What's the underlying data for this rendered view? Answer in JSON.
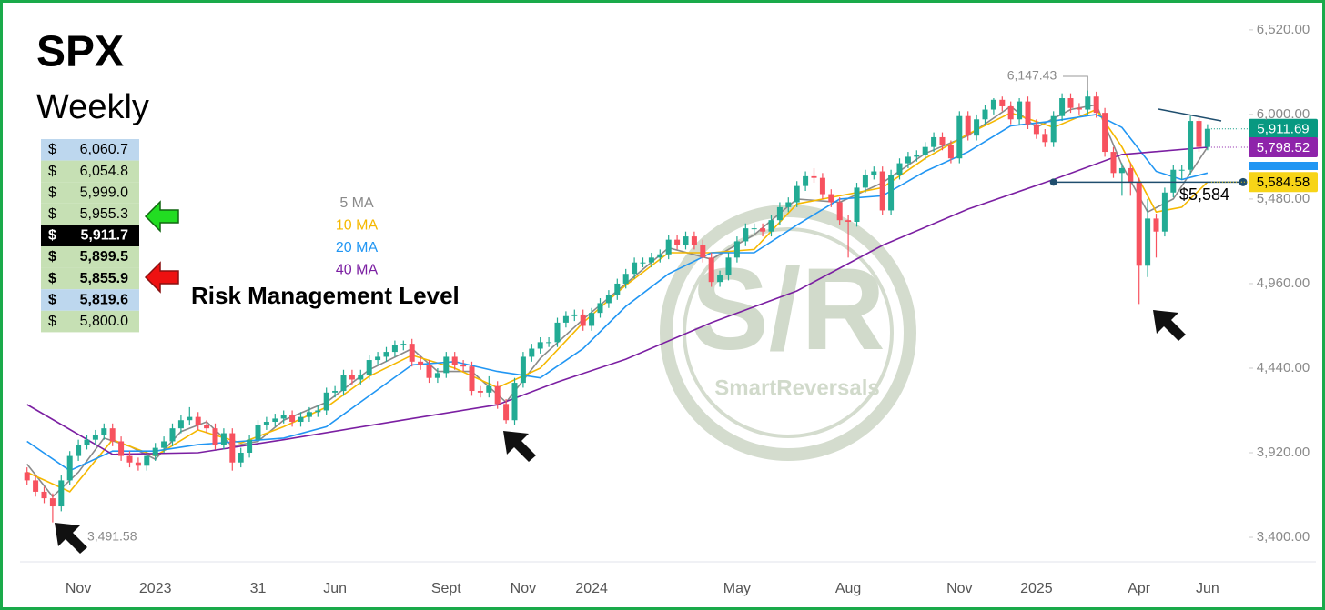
{
  "chart_data": {
    "type": "candlestick",
    "title": "SPX",
    "subtitle": "Weekly",
    "levels_table": [
      [
        "$",
        "6,060.7"
      ],
      [
        "$",
        "6,054.8"
      ],
      [
        "$",
        "5,999.0"
      ],
      [
        "$",
        "5,955.3"
      ],
      [
        "$",
        "5,911.7"
      ],
      [
        "$",
        "5,899.5"
      ],
      [
        "$",
        "5,855.9"
      ],
      [
        "$",
        "5,819.6"
      ],
      [
        "$",
        "5,800.0"
      ]
    ],
    "risk_label": "Risk Management Level",
    "watermark": {
      "logo": "S/R",
      "brand": "SmartReversals"
    },
    "categories": [
      null,
      null,
      null,
      null,
      null,
      null,
      "Nov",
      null,
      null,
      null,
      null,
      null,
      null,
      null,
      null,
      "2023",
      null,
      null,
      null,
      null,
      null,
      null,
      null,
      null,
      null,
      null,
      null,
      "31",
      null,
      null,
      null,
      null,
      null,
      null,
      null,
      null,
      "Jun",
      null,
      null,
      null,
      null,
      null,
      null,
      null,
      null,
      null,
      null,
      null,
      null,
      "Sept",
      null,
      null,
      null,
      null,
      null,
      null,
      null,
      null,
      "Nov",
      null,
      null,
      null,
      null,
      null,
      null,
      null,
      "2024",
      null,
      null,
      null,
      null,
      null,
      null,
      null,
      null,
      null,
      null,
      null,
      null,
      null,
      null,
      null,
      null,
      "May",
      null,
      null,
      null,
      null,
      null,
      null,
      null,
      null,
      null,
      null,
      null,
      null,
      "Aug",
      null,
      null,
      null,
      null,
      null,
      null,
      null,
      null,
      null,
      null,
      null,
      null,
      "Nov",
      null,
      null,
      null,
      null,
      null,
      null,
      null,
      null,
      "2025",
      null,
      null,
      null,
      null,
      null,
      null,
      null,
      null,
      null,
      null,
      null,
      "Apr",
      null,
      null,
      null,
      null,
      null,
      null,
      null,
      "Jun"
    ],
    "open": [
      3800,
      3750,
      3680,
      3640,
      3590,
      3750,
      3900,
      3970,
      4000,
      4030,
      4070,
      3990,
      3900,
      3860,
      3840,
      3900,
      3950,
      3990,
      4070,
      4120,
      4140,
      4090,
      4070,
      3970,
      4040,
      3860,
      3920,
      4000,
      4090,
      4110,
      4130,
      4150,
      4110,
      4140,
      4170,
      4180,
      4290,
      4300,
      4400,
      4370,
      4400,
      4490,
      4510,
      4540,
      4580,
      4590,
      4480,
      4460,
      4380,
      4410,
      4510,
      4460,
      4450,
      4300,
      4290,
      4330,
      4220,
      4120,
      4350,
      4510,
      4560,
      4600,
      4600,
      4720,
      4760,
      4770,
      4700,
      4780,
      4840,
      4890,
      4960,
      5020,
      5090,
      5090,
      5120,
      5140,
      5230,
      5200,
      5250,
      5200,
      5120,
      4970,
      5010,
      5120,
      5220,
      5300,
      5300,
      5280,
      5350,
      5430,
      5460,
      5560,
      5620,
      5610,
      5510,
      5460,
      5350,
      5340,
      5550,
      5630,
      5650,
      5410,
      5630,
      5700,
      5740,
      5750,
      5800,
      5860,
      5810,
      5730,
      5990,
      5870,
      5970,
      6030,
      6090,
      6050,
      5970,
      6080,
      5940,
      5880,
      5830,
      5990,
      6100,
      6040,
      6030,
      6110,
      6010,
      5770,
      5640,
      5670,
      5580,
      5070,
      5360,
      5280,
      5520,
      5660,
      5660,
      5960,
      5800
    ],
    "high": [
      3830,
      3780,
      3710,
      3670,
      3780,
      3930,
      4000,
      4030,
      4060,
      4100,
      4100,
      4020,
      3930,
      3890,
      3930,
      3980,
      4020,
      4100,
      4150,
      4200,
      4170,
      4120,
      4100,
      4070,
      4070,
      3950,
      4030,
      4120,
      4140,
      4160,
      4180,
      4180,
      4170,
      4200,
      4210,
      4320,
      4330,
      4430,
      4430,
      4430,
      4520,
      4540,
      4570,
      4610,
      4610,
      4620,
      4510,
      4490,
      4440,
      4540,
      4540,
      4490,
      4480,
      4330,
      4390,
      4360,
      4250,
      4380,
      4540,
      4590,
      4630,
      4630,
      4750,
      4790,
      4800,
      4800,
      4810,
      4870,
      4920,
      4990,
      5050,
      5120,
      5120,
      5150,
      5170,
      5260,
      5260,
      5280,
      5280,
      5230,
      5150,
      5040,
      5150,
      5250,
      5330,
      5330,
      5330,
      5380,
      5460,
      5490,
      5590,
      5650,
      5670,
      5640,
      5540,
      5490,
      5380,
      5580,
      5660,
      5680,
      5680,
      5660,
      5730,
      5770,
      5780,
      5830,
      5890,
      5890,
      5840,
      6020,
      6020,
      6000,
      6060,
      6100,
      6110,
      6080,
      6100,
      6110,
      5970,
      5910,
      6020,
      6130,
      6130,
      6070,
      6147.43,
      6140,
      6040,
      5800,
      5700,
      5700,
      5610,
      5480,
      5390,
      5550,
      5690,
      5690,
      5990,
      5990,
      5940
    ],
    "low": [
      3720,
      3650,
      3610,
      3491.58,
      3560,
      3720,
      3870,
      3940,
      3970,
      4000,
      3960,
      3870,
      3830,
      3810,
      3810,
      3870,
      3920,
      3960,
      4040,
      4090,
      4060,
      4040,
      3940,
      3940,
      3810,
      3830,
      3890,
      3970,
      4060,
      4080,
      4100,
      4080,
      4080,
      4110,
      4140,
      4150,
      4260,
      4270,
      4340,
      4340,
      4370,
      4460,
      4480,
      4510,
      4550,
      4450,
      4430,
      4350,
      4350,
      4380,
      4430,
      4420,
      4270,
      4260,
      4260,
      4190,
      4100,
      4090,
      4320,
      4480,
      4530,
      4570,
      4570,
      4690,
      4730,
      4670,
      4670,
      4750,
      4810,
      4860,
      4930,
      4990,
      5060,
      5060,
      5090,
      5110,
      5170,
      5170,
      5170,
      5090,
      4940,
      4940,
      4980,
      5090,
      5190,
      5270,
      5250,
      5250,
      5320,
      5400,
      5430,
      5530,
      5580,
      5480,
      5430,
      5320,
      5120,
      5310,
      5520,
      5600,
      5380,
      5380,
      5600,
      5670,
      5710,
      5720,
      5770,
      5780,
      5700,
      5700,
      5840,
      5840,
      5940,
      6000,
      6020,
      5940,
      5940,
      5910,
      5850,
      5800,
      5800,
      5960,
      6010,
      6000,
      6000,
      5980,
      5740,
      5610,
      5500,
      5500,
      4835,
      5000,
      5120,
      5250,
      5490,
      5600,
      5630,
      5770,
      5780
    ],
    "close": [
      3750,
      3680,
      3640,
      3590,
      3750,
      3900,
      3970,
      4000,
      4030,
      4070,
      3990,
      3900,
      3860,
      3840,
      3900,
      3950,
      3990,
      4070,
      4120,
      4140,
      4090,
      4070,
      3970,
      4040,
      3860,
      3920,
      4000,
      4090,
      4110,
      4130,
      4150,
      4110,
      4140,
      4170,
      4180,
      4290,
      4300,
      4400,
      4370,
      4400,
      4490,
      4510,
      4540,
      4580,
      4590,
      4480,
      4460,
      4380,
      4410,
      4510,
      4460,
      4450,
      4300,
      4290,
      4330,
      4220,
      4120,
      4350,
      4510,
      4560,
      4600,
      4600,
      4720,
      4760,
      4770,
      4700,
      4780,
      4840,
      4890,
      4960,
      5020,
      5090,
      5090,
      5120,
      5140,
      5230,
      5200,
      5250,
      5200,
      5120,
      4970,
      5010,
      5120,
      5220,
      5300,
      5300,
      5280,
      5350,
      5430,
      5460,
      5560,
      5620,
      5610,
      5510,
      5460,
      5350,
      5340,
      5550,
      5630,
      5650,
      5410,
      5630,
      5700,
      5740,
      5750,
      5800,
      5860,
      5810,
      5730,
      5990,
      5870,
      5970,
      6030,
      6090,
      6050,
      5970,
      6080,
      5940,
      5880,
      5830,
      5990,
      6100,
      6040,
      6030,
      6110,
      6010,
      5770,
      5640,
      5670,
      5580,
      5070,
      5360,
      5280,
      5520,
      5660,
      5660,
      5960,
      5800,
      5911.69
    ],
    "up_color": "#22ab94",
    "down_color": "#f7525f",
    "series": [
      {
        "name": "5 MA",
        "color": "#8a8a8a",
        "x": [
          0,
          3,
          6,
          9,
          12,
          15,
          18,
          21,
          24,
          27,
          30,
          35,
          40,
          45,
          48,
          52,
          56,
          60,
          65,
          70,
          75,
          80,
          85,
          90,
          95,
          100,
          105,
          110,
          115,
          118,
          122,
          125,
          128,
          131,
          134,
          138
        ],
        "values": [
          3850,
          3650,
          3800,
          4010,
          3960,
          3880,
          4050,
          4110,
          3960,
          3990,
          4120,
          4230,
          4430,
          4560,
          4420,
          4420,
          4230,
          4500,
          4740,
          4960,
          5180,
          5110,
          5260,
          5480,
          5460,
          5580,
          5760,
          5870,
          6050,
          5920,
          6030,
          6060,
          5690,
          5400,
          5480,
          5800
        ]
      },
      {
        "name": "10 MA",
        "color": "#f5b800",
        "x": [
          0,
          5,
          10,
          15,
          20,
          25,
          30,
          35,
          40,
          45,
          50,
          55,
          60,
          65,
          70,
          75,
          80,
          85,
          90,
          95,
          100,
          105,
          110,
          115,
          120,
          125,
          128,
          132,
          135,
          138
        ],
        "values": [
          3800,
          3680,
          4000,
          3900,
          4060,
          3980,
          4080,
          4200,
          4390,
          4520,
          4440,
          4320,
          4440,
          4720,
          4950,
          5150,
          5150,
          5170,
          5450,
          5500,
          5550,
          5730,
          5880,
          6010,
          5920,
          6030,
          5800,
          5400,
          5430,
          5584.58
        ]
      },
      {
        "name": "20 MA",
        "color": "#2196f3",
        "x": [
          0,
          5,
          10,
          15,
          20,
          25,
          30,
          35,
          40,
          45,
          50,
          55,
          60,
          65,
          70,
          75,
          80,
          85,
          90,
          95,
          100,
          105,
          110,
          115,
          120,
          125,
          128,
          132,
          135,
          138
        ],
        "values": [
          3990,
          3810,
          3930,
          3930,
          3970,
          3990,
          4010,
          4080,
          4270,
          4460,
          4480,
          4420,
          4380,
          4560,
          4820,
          5020,
          5150,
          5150,
          5320,
          5480,
          5500,
          5650,
          5770,
          5930,
          5960,
          6000,
          5920,
          5650,
          5600,
          5640
        ]
      },
      {
        "name": "40 MA",
        "color": "#7b1fa2",
        "x": [
          0,
          10,
          20,
          30,
          45,
          55,
          62,
          70,
          80,
          90,
          100,
          110,
          120,
          128,
          138
        ],
        "values": [
          4216,
          3910,
          3920,
          4000,
          4130,
          4215,
          4355,
          4495,
          4720,
          4915,
          5195,
          5418,
          5600,
          5754,
          5798.52
        ]
      }
    ],
    "price_tags": [
      {
        "label": "5,911.69",
        "value": 5911.69,
        "color": "#089981"
      },
      {
        "label": "5,798.52",
        "value": 5798.52,
        "color": "#8e24aa"
      },
      {
        "label": "5,584.58",
        "value": 5584.58,
        "color": "#f7d417"
      }
    ],
    "high_label": "6,147.43",
    "low_label": "3,491.58",
    "level": {
      "value": 5584,
      "label": "$5,584"
    },
    "ylim": [
      3238,
      6620
    ],
    "yticks": [
      {
        "value": 3400,
        "label": "3,400.00"
      },
      {
        "value": 3920,
        "label": "3,920.00"
      },
      {
        "value": 4440,
        "label": "4,440.00"
      },
      {
        "value": 4960,
        "label": "4,960.00"
      },
      {
        "value": 5480,
        "label": "5,480.00"
      },
      {
        "value": 6000,
        "label": "6,000.00"
      },
      {
        "value": 6520,
        "label": "6,520.00"
      }
    ]
  }
}
